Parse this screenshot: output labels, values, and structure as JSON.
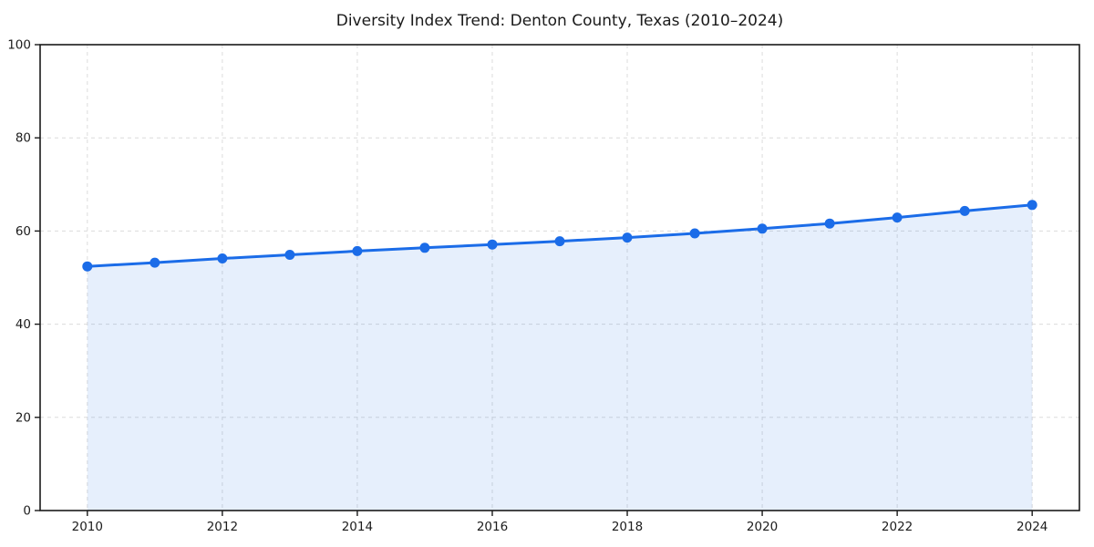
{
  "chart_data": {
    "type": "line",
    "title": "Diversity Index Trend: Denton County, Texas (2010–2024)",
    "xlabel": "",
    "ylabel": "",
    "x": [
      2010,
      2011,
      2012,
      2013,
      2014,
      2015,
      2016,
      2017,
      2018,
      2019,
      2020,
      2021,
      2022,
      2023,
      2024
    ],
    "values": [
      52.4,
      53.2,
      54.1,
      54.9,
      55.7,
      56.4,
      57.1,
      57.8,
      58.6,
      59.5,
      60.5,
      61.6,
      62.9,
      64.3,
      65.6
    ],
    "x_ticks": [
      2010,
      2012,
      2014,
      2016,
      2018,
      2020,
      2022,
      2024
    ],
    "y_ticks": [
      0,
      20,
      40,
      60,
      80,
      100
    ],
    "xlim": [
      2009.3,
      2024.7
    ],
    "ylim": [
      0,
      100
    ],
    "grid": true,
    "grid_style": "dashed",
    "legend": "none",
    "marker": "circle",
    "area_fill": true,
    "colors": {
      "line": "#1b6ce8",
      "grid": "#dcdcdc",
      "axis": "#1a1a1a",
      "tick_label": "#1c1c1c",
      "title": "#1a1a1a",
      "background": "#ffffff"
    }
  }
}
